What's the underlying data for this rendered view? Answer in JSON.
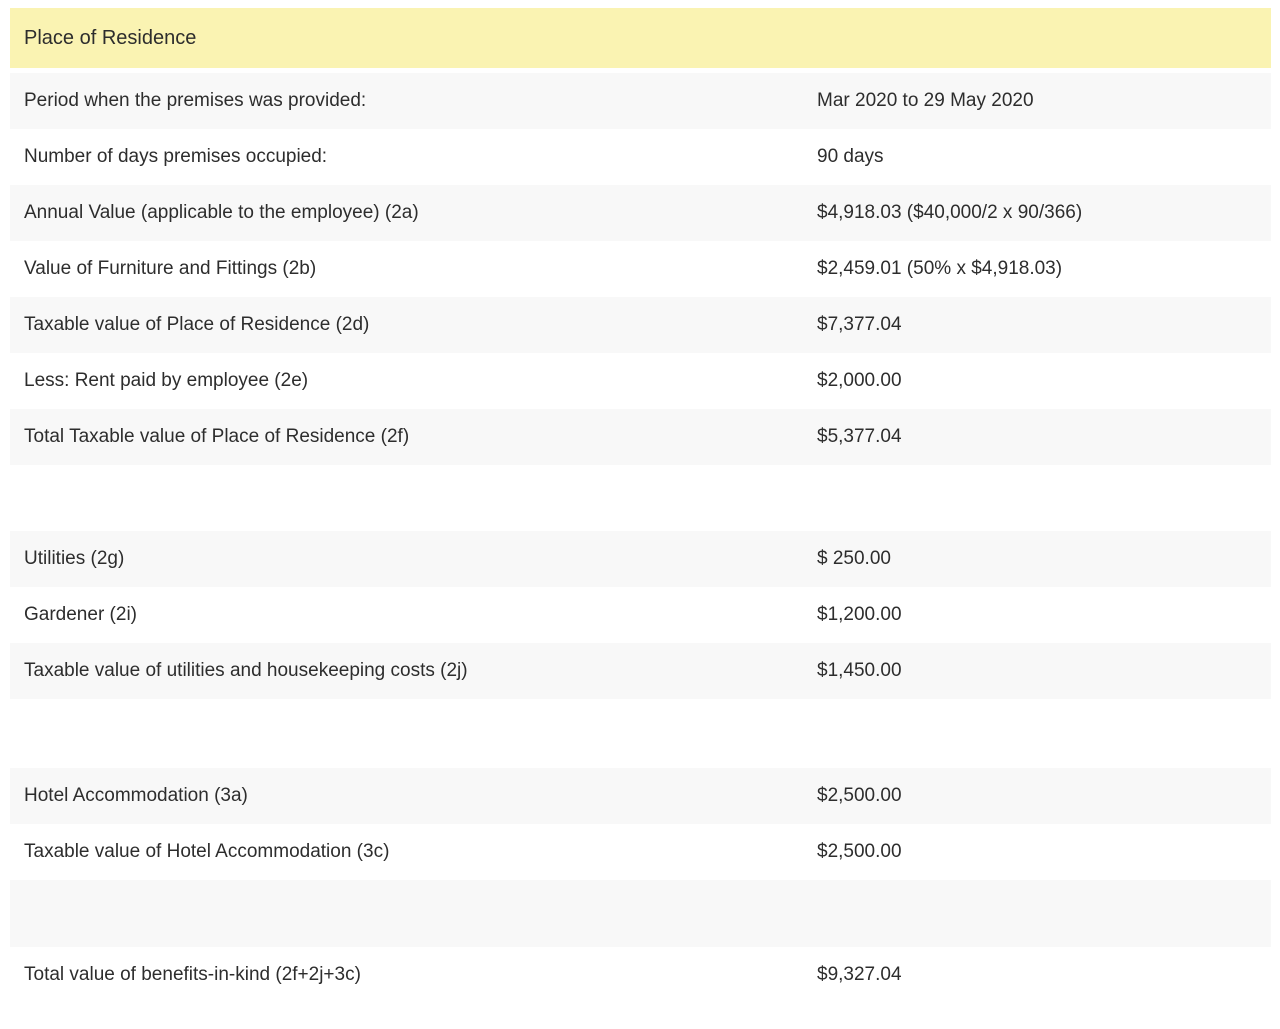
{
  "page": {
    "background": "#ffffff",
    "text_color": "#2d2d2d"
  },
  "header": {
    "title": "Place of Residence",
    "background": "#faf3b2"
  },
  "table": {
    "colors": {
      "row_shaded": "#f8f8f8",
      "row_plain": "#ffffff"
    },
    "sections": [
      {
        "name": "place-of-residence",
        "rows": [
          {
            "label": "Period when the premises was provided:",
            "value": "Mar 2020 to 29 May 2020"
          },
          {
            "label": "Number of days premises occupied:",
            "value": "90 days"
          },
          {
            "label": "Annual Value (applicable to the employee) (2a)",
            "value": "$4,918.03 ($40,000/2 x 90/366)"
          },
          {
            "label": "Value of Furniture and Fittings (2b)",
            "value": "$2,459.01 (50% x $4,918.03)"
          },
          {
            "label": "Taxable value of Place of Residence (2d)",
            "value": "$7,377.04"
          },
          {
            "label": "Less: Rent paid by employee (2e)",
            "value": "$2,000.00"
          },
          {
            "label": "Total Taxable value of Place of Residence (2f)",
            "value": "$5,377.04"
          }
        ]
      },
      {
        "name": "utilities-housekeeping",
        "rows": [
          {
            "label": "Utilities (2g)",
            "value": "$ 250.00"
          },
          {
            "label": "Gardener (2i)",
            "value": "$1,200.00"
          },
          {
            "label": "Taxable value of utilities and housekeeping costs (2j)",
            "value": "$1,450.00"
          }
        ]
      },
      {
        "name": "hotel-and-total",
        "rows": [
          {
            "label": "Hotel Accommodation (3a)",
            "value": "$2,500.00"
          },
          {
            "label": "Taxable value of Hotel Accommodation (3c)",
            "value": "$2,500.00"
          },
          {
            "label": "",
            "value": "",
            "empty": true
          },
          {
            "label": "Total value of benefits-in-kind (2f+2j+3c)",
            "value": "$9,327.04"
          }
        ]
      }
    ]
  }
}
